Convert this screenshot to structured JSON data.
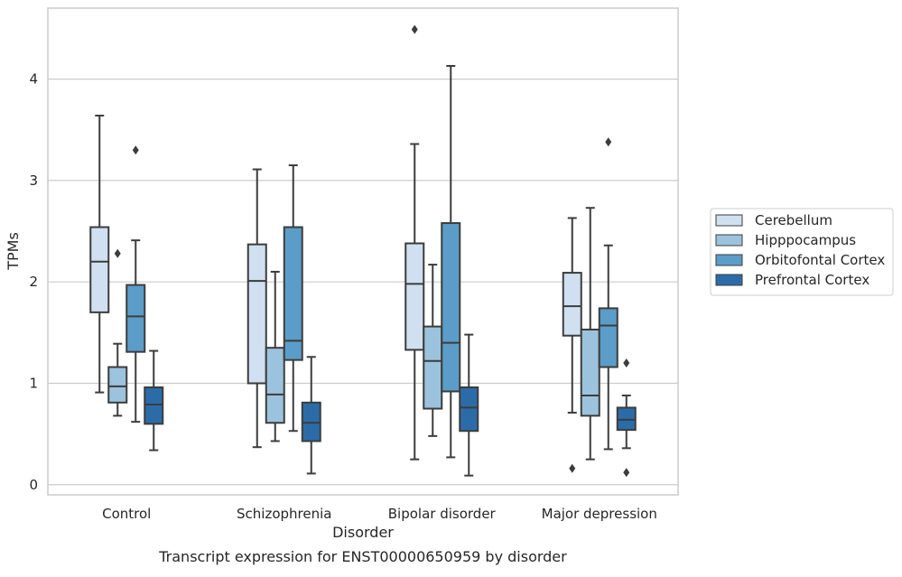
{
  "chart_data": {
    "type": "boxplot",
    "caption": "Transcript expression for ENST00000650959 by disorder",
    "xlabel": "Disorder",
    "ylabel": "TPMs",
    "ylim": [
      -0.1,
      4.7
    ],
    "yticks": [
      0,
      1,
      2,
      3,
      4
    ],
    "grid": "horizontal",
    "legend_position": "right",
    "categories": [
      "Control",
      "Schizophrenia",
      "Bipolar disorder",
      "Major depression"
    ],
    "series": [
      {
        "name": "Cerebellum",
        "color": "#d0e0f1",
        "boxes": [
          {
            "low": 0.91,
            "q1": 1.7,
            "median": 2.2,
            "q3": 2.54,
            "high": 3.64,
            "outliers": []
          },
          {
            "low": 0.37,
            "q1": 1.0,
            "median": 2.01,
            "q3": 2.37,
            "high": 3.11,
            "outliers": []
          },
          {
            "low": 0.25,
            "q1": 1.33,
            "median": 1.98,
            "q3": 2.38,
            "high": 3.36,
            "outliers": [
              4.49
            ]
          },
          {
            "low": 0.71,
            "q1": 1.47,
            "median": 1.76,
            "q3": 2.09,
            "high": 2.63,
            "outliers": [
              0.16
            ]
          }
        ]
      },
      {
        "name": "Hipppocampus",
        "color": "#9cc3dd",
        "boxes": [
          {
            "low": 0.68,
            "q1": 0.81,
            "median": 0.97,
            "q3": 1.16,
            "high": 1.39,
            "outliers": [
              2.28
            ]
          },
          {
            "low": 0.43,
            "q1": 0.61,
            "median": 0.89,
            "q3": 1.35,
            "high": 2.1,
            "outliers": []
          },
          {
            "low": 0.48,
            "q1": 0.75,
            "median": 1.22,
            "q3": 1.56,
            "high": 2.17,
            "outliers": []
          },
          {
            "low": 0.25,
            "q1": 0.68,
            "median": 0.88,
            "q3": 1.53,
            "high": 2.73,
            "outliers": []
          }
        ]
      },
      {
        "name": "Orbitofontal Cortex",
        "color": "#5b9dc8",
        "boxes": [
          {
            "low": 0.62,
            "q1": 1.31,
            "median": 1.66,
            "q3": 1.97,
            "high": 2.41,
            "outliers": [
              3.3
            ]
          },
          {
            "low": 0.53,
            "q1": 1.23,
            "median": 1.42,
            "q3": 2.54,
            "high": 3.15,
            "outliers": []
          },
          {
            "low": 0.27,
            "q1": 0.92,
            "median": 1.4,
            "q3": 2.58,
            "high": 4.13,
            "outliers": []
          },
          {
            "low": 0.35,
            "q1": 1.16,
            "median": 1.57,
            "q3": 1.74,
            "high": 2.36,
            "outliers": [
              3.38
            ]
          }
        ]
      },
      {
        "name": "Prefrontal Cortex",
        "color": "#2b6ca8",
        "boxes": [
          {
            "low": 0.34,
            "q1": 0.6,
            "median": 0.79,
            "q3": 0.96,
            "high": 1.32,
            "outliers": []
          },
          {
            "low": 0.11,
            "q1": 0.43,
            "median": 0.61,
            "q3": 0.81,
            "high": 1.26,
            "outliers": []
          },
          {
            "low": 0.09,
            "q1": 0.53,
            "median": 0.76,
            "q3": 0.96,
            "high": 1.48,
            "outliers": []
          },
          {
            "low": 0.36,
            "q1": 0.54,
            "median": 0.64,
            "q3": 0.76,
            "high": 0.88,
            "outliers": [
              0.12,
              1.2
            ]
          }
        ]
      }
    ]
  }
}
